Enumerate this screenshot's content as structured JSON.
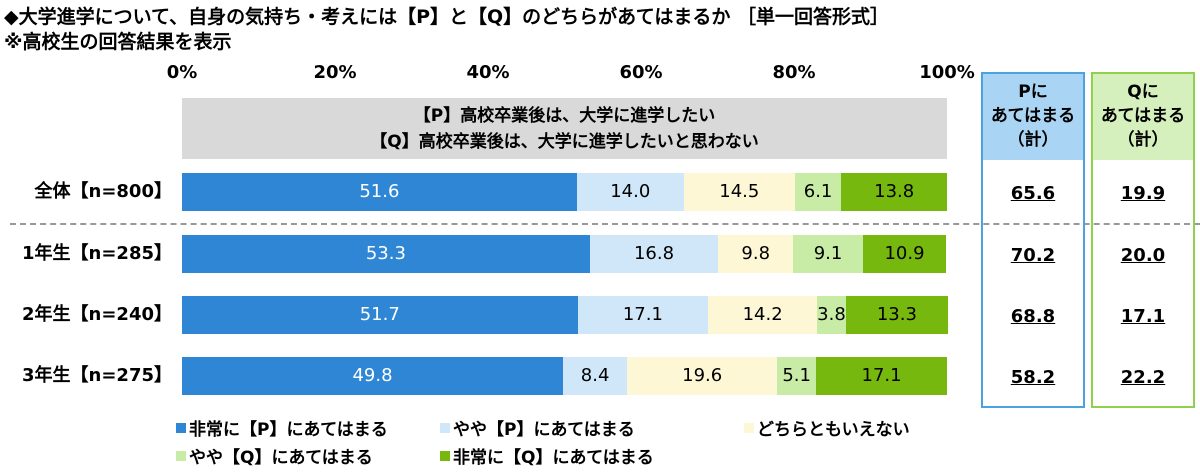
{
  "title_line1": "◆大学進学について、自身の気持ち・考えには【P】と【Q】のどちらがあてはまるか ［単一回答形式］",
  "title_line2": "※高校生の回答結果を表示",
  "pq_header": {
    "p": "【P】高校卒業後は、大学に進学したい",
    "q": "【Q】高校卒業後は、大学に進学したいと思わない"
  },
  "summary_headers": {
    "p": [
      "Pに",
      "あてはまる",
      "（計）"
    ],
    "q": [
      "Qに",
      "あてはまる",
      "（計）"
    ]
  },
  "chart_data": {
    "type": "bar",
    "orientation": "horizontal",
    "stacked": true,
    "x_ticks": [
      "0%",
      "20%",
      "40%",
      "60%",
      "80%",
      "100%"
    ],
    "xlim": [
      0,
      100
    ],
    "categories": [
      "全体【n=800】",
      "1年生【n=285】",
      "2年生【n=240】",
      "3年生【n=275】"
    ],
    "series": [
      {
        "name": "非常に【P】にあてはまる",
        "color": "#2e86d4",
        "label_color": "#ffffff",
        "values": [
          51.6,
          53.3,
          51.7,
          49.8
        ]
      },
      {
        "name": "やや【P】にあてはまる",
        "color": "#cfe7f8",
        "label_color": "#000000",
        "values": [
          14.0,
          16.8,
          17.1,
          8.4
        ]
      },
      {
        "name": "どちらともいえない",
        "color": "#fdf7d6",
        "label_color": "#000000",
        "values": [
          14.5,
          9.8,
          14.2,
          19.6
        ]
      },
      {
        "name": "やや【Q】にあてはまる",
        "color": "#c8eca6",
        "label_color": "#000000",
        "values": [
          6.1,
          9.1,
          3.8,
          5.1
        ]
      },
      {
        "name": "非常に【Q】にあてはまる",
        "color": "#76b80d",
        "label_color": "#000000",
        "values": [
          13.8,
          10.9,
          13.3,
          17.1
        ]
      }
    ],
    "p_total": [
      "65.6",
      "70.2",
      "68.8",
      "58.2"
    ],
    "q_total": [
      "19.9",
      "20.0",
      "17.1",
      "22.2"
    ],
    "legend_placement": "bottom",
    "grid": false
  },
  "colors": {
    "p_box_border": "#4aa3df",
    "p_box_fill": "#aad4f4",
    "q_box_border": "#8fd14f",
    "q_box_fill": "#d6f0bd"
  }
}
